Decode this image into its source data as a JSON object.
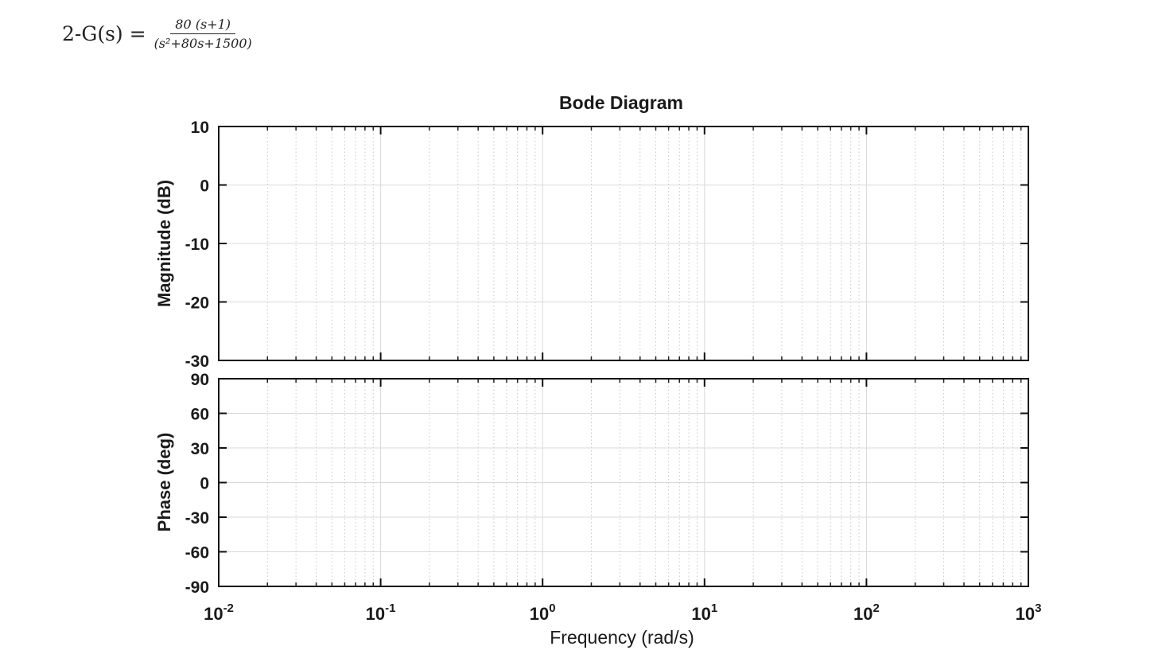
{
  "equation": {
    "lhs": "2-G(s) =",
    "numerator": "80 (s+1)",
    "denominator": "(s²+80s+1500)"
  },
  "chart_data": [
    {
      "type": "line",
      "panel": "magnitude",
      "title": "Bode Diagram",
      "ylabel": "Magnitude (dB)",
      "xlabel": "Frequency  (rad/s)",
      "xscale": "log",
      "xlim": [
        0.01,
        1000
      ],
      "ylim": [
        -30,
        10
      ],
      "yticks": [
        10,
        0,
        -10,
        -20,
        -30
      ],
      "grid": true,
      "series": []
    },
    {
      "type": "line",
      "panel": "phase",
      "ylabel": "Phase (deg)",
      "xlabel": "Frequency  (rad/s)",
      "xscale": "log",
      "xlim": [
        0.01,
        1000
      ],
      "ylim": [
        -90,
        90
      ],
      "yticks": [
        90,
        60,
        30,
        0,
        -30,
        -60,
        -90
      ],
      "xtick_exponents": [
        "-2",
        "-1",
        "0",
        "1",
        "2",
        "3"
      ],
      "grid": true,
      "series": []
    }
  ]
}
